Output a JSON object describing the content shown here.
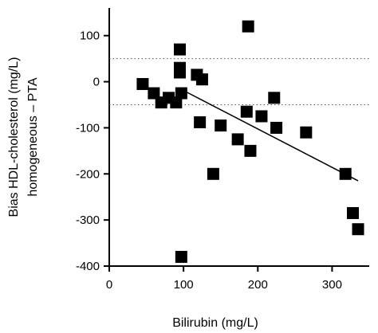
{
  "chart_data": {
    "type": "scatter",
    "title": "",
    "xlabel": "Bilirubin (mg/L)",
    "ylabel_line1": "Bias HDL-cholesterol (mg/L)",
    "ylabel_line2": "homogeneous – PTA",
    "xlim": [
      0,
      350
    ],
    "ylim": [
      -400,
      160
    ],
    "x_ticks": [
      0,
      100,
      200,
      300
    ],
    "y_ticks": [
      100,
      0,
      -100,
      -200,
      -300,
      -400
    ],
    "reference_lines": [
      50,
      -50
    ],
    "regression_line": {
      "x": [
        95,
        335
      ],
      "y": [
        -15,
        -215
      ]
    },
    "marker_color": "#000000",
    "points": [
      {
        "x": 45,
        "y": -5
      },
      {
        "x": 60,
        "y": -25
      },
      {
        "x": 70,
        "y": -45
      },
      {
        "x": 80,
        "y": -35
      },
      {
        "x": 90,
        "y": -45
      },
      {
        "x": 95,
        "y": 70
      },
      {
        "x": 95,
        "y": 30
      },
      {
        "x": 95,
        "y": 20
      },
      {
        "x": 97,
        "y": -25
      },
      {
        "x": 97,
        "y": -380
      },
      {
        "x": 118,
        "y": 15
      },
      {
        "x": 122,
        "y": -88
      },
      {
        "x": 125,
        "y": 5
      },
      {
        "x": 140,
        "y": -200
      },
      {
        "x": 150,
        "y": -95
      },
      {
        "x": 173,
        "y": -125
      },
      {
        "x": 185,
        "y": -65
      },
      {
        "x": 187,
        "y": 120
      },
      {
        "x": 190,
        "y": -150
      },
      {
        "x": 205,
        "y": -75
      },
      {
        "x": 222,
        "y": -35
      },
      {
        "x": 225,
        "y": -100
      },
      {
        "x": 265,
        "y": -110
      },
      {
        "x": 318,
        "y": -200
      },
      {
        "x": 328,
        "y": -285
      },
      {
        "x": 335,
        "y": -320
      }
    ]
  }
}
